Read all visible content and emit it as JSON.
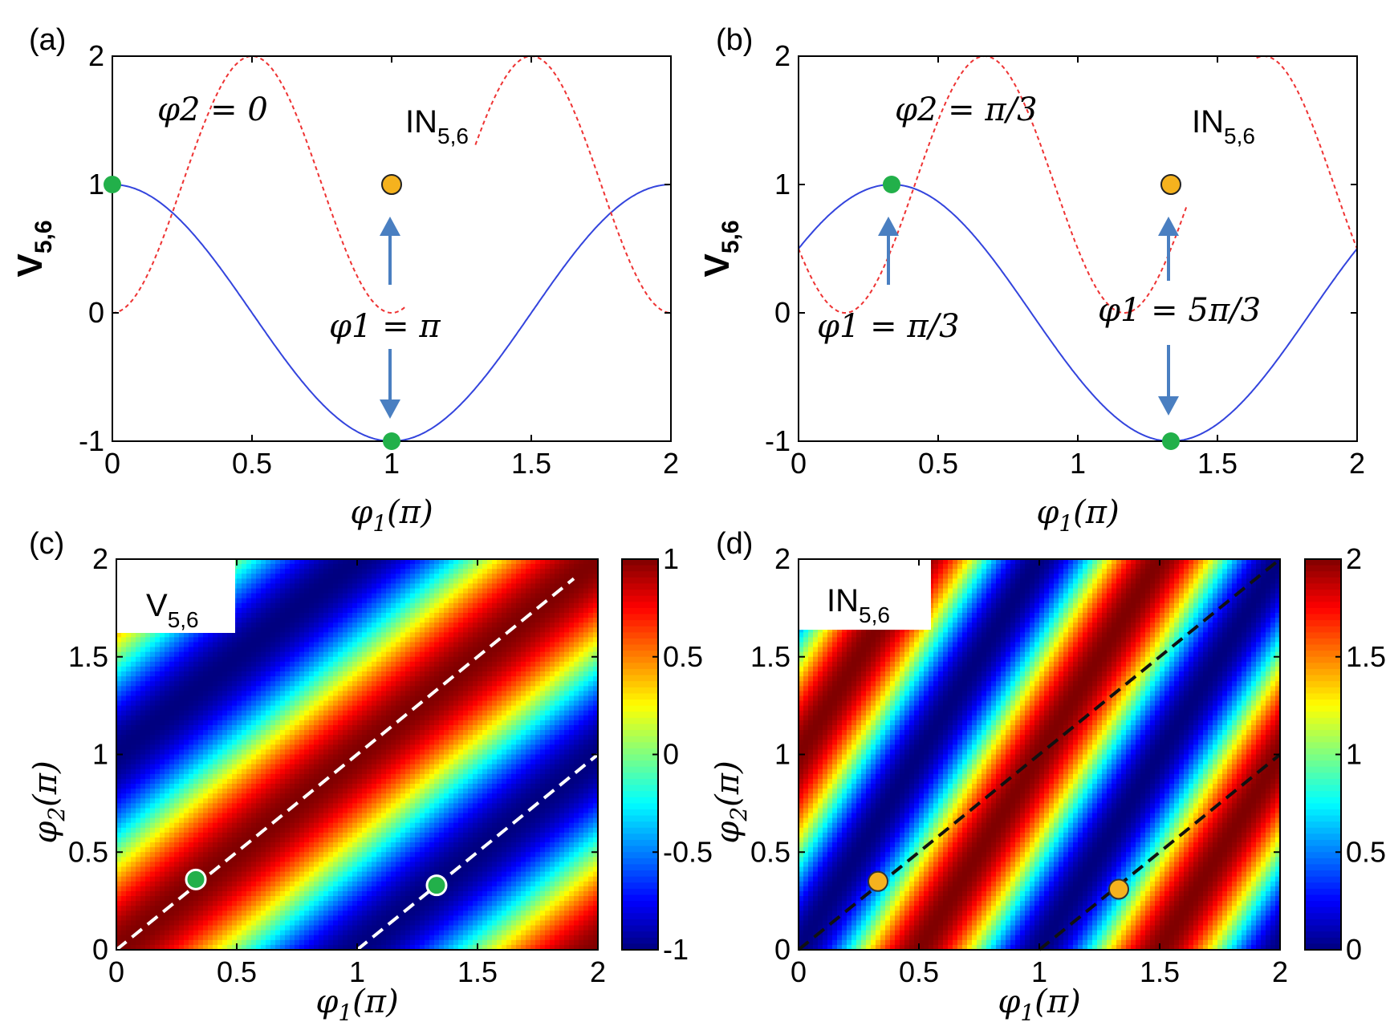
{
  "chart_data": [
    {
      "id": "a",
      "type": "line",
      "panel_label": "(a)",
      "xlabel": "φ1(π)",
      "ylabel": "V5,6",
      "xlim": [
        0,
        2
      ],
      "ylim": [
        -1,
        2
      ],
      "xticks": [
        "0",
        "0.5",
        "1",
        "1.5",
        "2"
      ],
      "yticks": [
        "-1",
        "0",
        "1",
        "2"
      ],
      "phi2_over_pi": 0,
      "phi2_text": "φ2 = 0",
      "phi1_text": "φ1 = π",
      "in_label": "IN5,6",
      "series": [
        {
          "name": "V5,6",
          "style": "solid",
          "color": "#3344dd",
          "formula": "cos(pi*(x - phi2))",
          "x_range": [
            0,
            2
          ]
        },
        {
          "name": "IN5,6",
          "style": "dashed",
          "color": "#ee3333",
          "formula": "1 - cos(2*pi*x - pi*phi2)",
          "x_range": [
            0,
            2
          ],
          "gap": [
            1.05,
            1.3
          ]
        }
      ],
      "points": [
        {
          "x": 0,
          "y": 1,
          "color": "#22b04a"
        },
        {
          "x": 1,
          "y": -1,
          "color": "#22b04a"
        },
        {
          "x": 1,
          "y": 1,
          "color": "#f5b21e"
        }
      ]
    },
    {
      "id": "b",
      "type": "line",
      "panel_label": "(b)",
      "xlabel": "φ1(π)",
      "ylabel": "V5,6",
      "xlim": [
        0,
        2
      ],
      "ylim": [
        -1,
        2
      ],
      "xticks": [
        "0",
        "0.5",
        "1",
        "1.5",
        "2"
      ],
      "yticks": [
        "-1",
        "0",
        "1",
        "2"
      ],
      "phi2_over_pi": 0.3333,
      "phi2_text": "φ2 = π/3",
      "phi1_text_left": "φ1 = π/3",
      "phi1_text_right": "φ1 = 5π/3",
      "in_label": "IN5,6",
      "series": [
        {
          "name": "V5,6",
          "style": "solid",
          "color": "#3344dd",
          "formula": "cos(pi*(x - phi2))",
          "x_range": [
            0,
            2
          ]
        },
        {
          "name": "IN5,6",
          "style": "dashed",
          "color": "#ee3333",
          "formula": "1 - cos(2*pi*x - pi*phi2)",
          "x_range": [
            0,
            2
          ],
          "gap": [
            1.39,
            1.64
          ]
        }
      ],
      "points": [
        {
          "x": 0.3333,
          "y": 1,
          "color": "#22b04a"
        },
        {
          "x": 1.3333,
          "y": -1,
          "color": "#22b04a"
        },
        {
          "x": 1.3333,
          "y": 1,
          "color": "#f5b21e"
        }
      ]
    },
    {
      "id": "c",
      "type": "heatmap",
      "panel_label": "(c)",
      "xlabel": "φ1(π)",
      "ylabel": "φ2(π)",
      "xlim": [
        0,
        2
      ],
      "ylim": [
        0,
        2
      ],
      "xticks": [
        "0",
        "0.5",
        "1",
        "1.5",
        "2"
      ],
      "yticks": [
        "0",
        "0.5",
        "1",
        "1.5",
        "2"
      ],
      "value": "cos(pi*(x - y))",
      "colorbar": {
        "min": -1,
        "max": 1,
        "ticks": [
          "1",
          "0.5",
          "0",
          "-0.5",
          "-1"
        ]
      },
      "inset_label": "V5,6",
      "dashed_lines": [
        {
          "from": [
            0,
            0
          ],
          "to": [
            1.9,
            1.9
          ]
        },
        {
          "from": [
            1,
            0
          ],
          "to": [
            2,
            1
          ]
        }
      ],
      "line_color": "#ffffff",
      "points": [
        {
          "x": 0.33,
          "y": 0.36,
          "color": "#22b04a"
        },
        {
          "x": 1.33,
          "y": 0.33,
          "color": "#22b04a"
        }
      ]
    },
    {
      "id": "d",
      "type": "heatmap",
      "panel_label": "(d)",
      "xlabel": "φ1(π)",
      "ylabel": "φ2(π)",
      "xlim": [
        0,
        2
      ],
      "ylim": [
        0,
        2
      ],
      "xticks": [
        "0",
        "0.5",
        "1",
        "1.5",
        "2"
      ],
      "yticks": [
        "0",
        "0.5",
        "1",
        "1.5",
        "2"
      ],
      "value": "1 - cos(2*pi*x - pi*y)",
      "colorbar": {
        "min": 0,
        "max": 2,
        "ticks": [
          "2",
          "1.5",
          "1",
          "0.5",
          "0"
        ]
      },
      "inset_label": "IN5,6",
      "dashed_lines": [
        {
          "from": [
            0,
            0
          ],
          "to": [
            2,
            2
          ]
        },
        {
          "from": [
            1,
            0
          ],
          "to": [
            2,
            1
          ]
        }
      ],
      "line_color": "#111111",
      "points": [
        {
          "x": 0.33,
          "y": 0.35,
          "color": "#f5b21e"
        },
        {
          "x": 1.33,
          "y": 0.31,
          "color": "#f5b21e"
        }
      ]
    }
  ]
}
